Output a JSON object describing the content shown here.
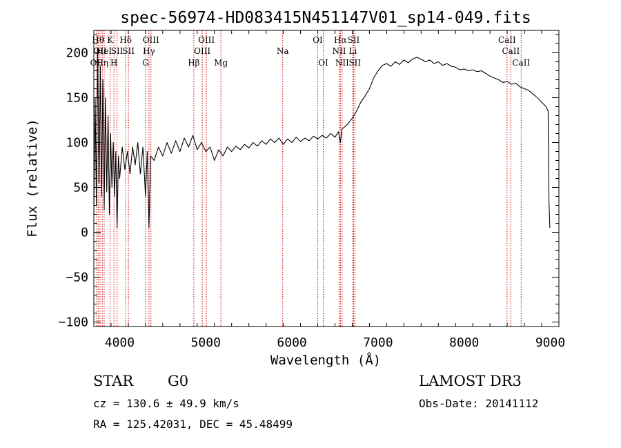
{
  "chart_data": {
    "type": "line",
    "title": "spec-56974-HD083415N451147V01_sp14-049.fits",
    "xlabel": "Wavelength (Å)",
    "ylabel": "Flux (relative)",
    "xlim": [
      3700,
      9100
    ],
    "ylim": [
      -105,
      225
    ],
    "x_ticks": [
      4000,
      5000,
      6000,
      7000,
      8000,
      9000
    ],
    "y_ticks": [
      -100,
      -50,
      0,
      50,
      100,
      150,
      200
    ],
    "y_tick_labels": [
      "−100",
      "−50",
      "0",
      "50",
      "100",
      "150",
      "200"
    ],
    "grid": false,
    "series": [
      {
        "color": "#000000",
        "points": [
          [
            3700,
            20
          ],
          [
            3715,
            150
          ],
          [
            3730,
            30
          ],
          [
            3745,
            205
          ],
          [
            3760,
            55
          ],
          [
            3775,
            185
          ],
          [
            3790,
            40
          ],
          [
            3805,
            170
          ],
          [
            3820,
            25
          ],
          [
            3835,
            150
          ],
          [
            3850,
            45
          ],
          [
            3865,
            130
          ],
          [
            3880,
            20
          ],
          [
            3895,
            110
          ],
          [
            3910,
            50
          ],
          [
            3925,
            100
          ],
          [
            3940,
            40
          ],
          [
            3955,
            90
          ],
          [
            3970,
            5
          ],
          [
            3985,
            85
          ],
          [
            4000,
            60
          ],
          [
            4030,
            95
          ],
          [
            4060,
            70
          ],
          [
            4090,
            90
          ],
          [
            4120,
            65
          ],
          [
            4150,
            95
          ],
          [
            4180,
            75
          ],
          [
            4210,
            100
          ],
          [
            4240,
            65
          ],
          [
            4270,
            95
          ],
          [
            4300,
            40
          ],
          [
            4320,
            90
          ],
          [
            4340,
            5
          ],
          [
            4360,
            85
          ],
          [
            4400,
            80
          ],
          [
            4450,
            95
          ],
          [
            4500,
            85
          ],
          [
            4550,
            100
          ],
          [
            4600,
            88
          ],
          [
            4650,
            102
          ],
          [
            4700,
            90
          ],
          [
            4750,
            105
          ],
          [
            4800,
            95
          ],
          [
            4850,
            108
          ],
          [
            4900,
            92
          ],
          [
            4950,
            100
          ],
          [
            5000,
            90
          ],
          [
            5050,
            95
          ],
          [
            5100,
            80
          ],
          [
            5150,
            92
          ],
          [
            5200,
            85
          ],
          [
            5250,
            95
          ],
          [
            5300,
            90
          ],
          [
            5350,
            96
          ],
          [
            5400,
            92
          ],
          [
            5450,
            98
          ],
          [
            5500,
            94
          ],
          [
            5550,
            100
          ],
          [
            5600,
            96
          ],
          [
            5650,
            102
          ],
          [
            5700,
            98
          ],
          [
            5750,
            104
          ],
          [
            5800,
            100
          ],
          [
            5850,
            105
          ],
          [
            5900,
            98
          ],
          [
            5950,
            104
          ],
          [
            6000,
            100
          ],
          [
            6050,
            106
          ],
          [
            6100,
            101
          ],
          [
            6150,
            105
          ],
          [
            6200,
            102
          ],
          [
            6250,
            107
          ],
          [
            6300,
            104
          ],
          [
            6350,
            108
          ],
          [
            6400,
            105
          ],
          [
            6450,
            110
          ],
          [
            6500,
            106
          ],
          [
            6540,
            112
          ],
          [
            6563,
            100
          ],
          [
            6580,
            115
          ],
          [
            6620,
            118
          ],
          [
            6660,
            122
          ],
          [
            6700,
            127
          ],
          [
            6750,
            135
          ],
          [
            6800,
            145
          ],
          [
            6850,
            152
          ],
          [
            6900,
            160
          ],
          [
            6950,
            172
          ],
          [
            7000,
            180
          ],
          [
            7050,
            186
          ],
          [
            7100,
            188
          ],
          [
            7150,
            185
          ],
          [
            7200,
            190
          ],
          [
            7250,
            187
          ],
          [
            7300,
            192
          ],
          [
            7350,
            189
          ],
          [
            7400,
            193
          ],
          [
            7450,
            195
          ],
          [
            7500,
            193
          ],
          [
            7550,
            190
          ],
          [
            7600,
            192
          ],
          [
            7650,
            188
          ],
          [
            7700,
            190
          ],
          [
            7750,
            186
          ],
          [
            7800,
            188
          ],
          [
            7850,
            185
          ],
          [
            7900,
            184
          ],
          [
            7950,
            181
          ],
          [
            8000,
            182
          ],
          [
            8050,
            180
          ],
          [
            8100,
            181
          ],
          [
            8150,
            179
          ],
          [
            8200,
            180
          ],
          [
            8250,
            177
          ],
          [
            8300,
            174
          ],
          [
            8350,
            172
          ],
          [
            8400,
            170
          ],
          [
            8450,
            167
          ],
          [
            8500,
            168
          ],
          [
            8550,
            165
          ],
          [
            8600,
            166
          ],
          [
            8650,
            162
          ],
          [
            8700,
            160
          ],
          [
            8750,
            158
          ],
          [
            8800,
            154
          ],
          [
            8850,
            150
          ],
          [
            8900,
            145
          ],
          [
            8950,
            140
          ],
          [
            8975,
            135
          ],
          [
            8985,
            35
          ],
          [
            8995,
            5
          ]
        ]
      }
    ],
    "line_markers": [
      {
        "wl": 3734,
        "label": "OII",
        "row": 3
      },
      {
        "wl": 3750,
        "label": "Hθ",
        "row": 1
      },
      {
        "wl": 3771,
        "label": "OII",
        "row": 2
      },
      {
        "wl": 3798,
        "label": "Hη",
        "row": 3
      },
      {
        "wl": 3820,
        "label": "HeI",
        "row": 2
      },
      {
        "wl": 3889,
        "label": "K",
        "row": 1
      },
      {
        "wl": 3934,
        "label": "H",
        "row": 3
      },
      {
        "wl": 3969,
        "label": "SII",
        "row": 2
      },
      {
        "wl": 4070,
        "label": "Hδ",
        "row": 1
      },
      {
        "wl": 4102,
        "label": "SII",
        "row": 2
      },
      {
        "wl": 4300,
        "label": "G",
        "row": 3
      },
      {
        "wl": 4340,
        "label": "Hγ",
        "row": 2
      },
      {
        "wl": 4363,
        "label": "OIII",
        "row": 1
      },
      {
        "wl": 4861,
        "label": "Hβ",
        "row": 3
      },
      {
        "wl": 4959,
        "label": "OIII",
        "row": 2
      },
      {
        "wl": 5007,
        "label": "OIII",
        "row": 1
      },
      {
        "wl": 5175,
        "label": "Mg",
        "row": 3
      },
      {
        "wl": 5893,
        "label": "Na",
        "row": 2
      },
      {
        "wl": 6300,
        "label": "OI",
        "row": 1
      },
      {
        "wl": 6364,
        "label": "OI",
        "row": 3
      },
      {
        "wl": 6548,
        "label": "NII",
        "row": 2
      },
      {
        "wl": 6563,
        "label": "Hα",
        "row": 1
      },
      {
        "wl": 6583,
        "label": "NII",
        "row": 3
      },
      {
        "wl": 6707,
        "label": "Li",
        "row": 2
      },
      {
        "wl": 6716,
        "label": "SII",
        "row": 1
      },
      {
        "wl": 6731,
        "label": "SII",
        "row": 3
      },
      {
        "wl": 8498,
        "label": "CaII",
        "row": 1
      },
      {
        "wl": 8542,
        "label": "CaII",
        "row": 2
      },
      {
        "wl": 8662,
        "label": "CaII",
        "row": 3
      }
    ],
    "marker_color": "#cc0000"
  },
  "info": {
    "object_class": "STAR",
    "subclass": "G0",
    "survey": "LAMOST DR3",
    "cz": "cz = 130.6 ± 49.9 km/s",
    "obs_date": "Obs-Date: 20141112",
    "coords": "RA = 125.42031, DEC =  45.48499"
  }
}
